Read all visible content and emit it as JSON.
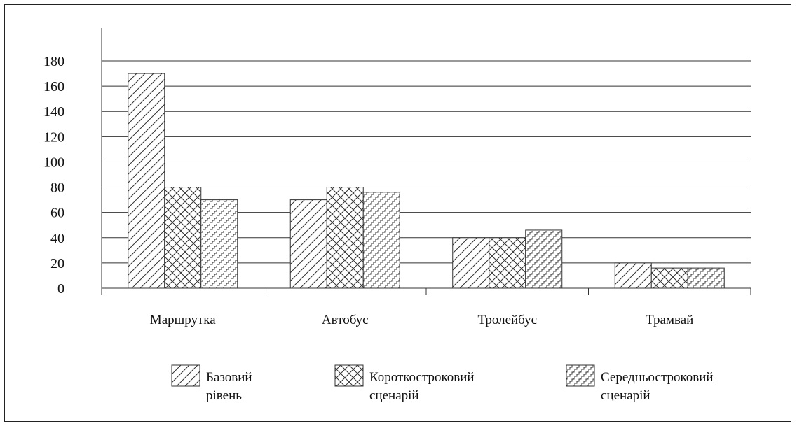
{
  "chart_data": {
    "type": "bar",
    "categories": [
      "Маршрутка",
      "Автобус",
      "Тролейбус",
      "Трамвай"
    ],
    "series": [
      {
        "name": "Базовий рівень",
        "legend_lines": [
          "Базовий",
          "рівень"
        ],
        "pattern": "diagonal",
        "values": [
          170,
          70,
          40,
          20
        ]
      },
      {
        "name": "Короткостроковий сценарій",
        "legend_lines": [
          "Короткостроковий",
          "сценарій"
        ],
        "pattern": "crosshatch",
        "values": [
          80,
          80,
          40,
          16
        ]
      },
      {
        "name": "Середньостроковий сценарій",
        "legend_lines": [
          "Середньостроковий",
          "сценарій"
        ],
        "pattern": "stairs",
        "values": [
          70,
          76,
          46,
          16
        ]
      }
    ],
    "yticks": [
      0,
      20,
      40,
      60,
      80,
      100,
      120,
      140,
      160,
      180
    ],
    "ylim": [
      0,
      180
    ],
    "grid": true,
    "legend_position": "bottom",
    "title": "",
    "xlabel": "",
    "ylabel": ""
  }
}
